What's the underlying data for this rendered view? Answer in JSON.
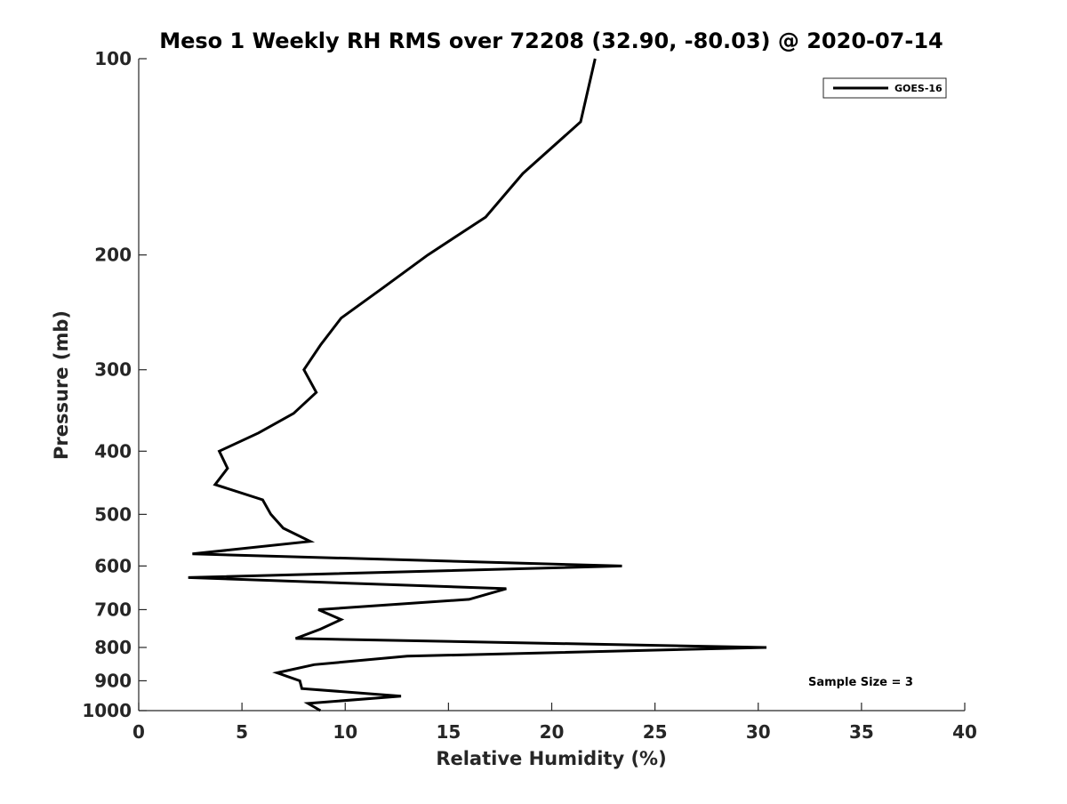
{
  "chart_data": {
    "type": "line",
    "title": "Meso 1 Weekly RH RMS over 72208 (32.90, -80.03) @ 2020-07-14",
    "xlabel": "Relative Humidity (%)",
    "ylabel": "Pressure (mb)",
    "xlim": [
      0,
      40
    ],
    "ylim": [
      1000,
      100
    ],
    "y_scale": "log",
    "y_reversed": true,
    "grid": false,
    "legend_position": "top-right",
    "x_ticks": [
      "0",
      "5",
      "10",
      "15",
      "20",
      "25",
      "30",
      "35",
      "40"
    ],
    "y_ticks": [
      "100",
      "200",
      "300",
      "400",
      "500",
      "600",
      "700",
      "800",
      "900",
      "1000"
    ],
    "annotation": "Sample Size = 3",
    "series": [
      {
        "name": "GOES-16",
        "color": "#000000",
        "points": [
          {
            "x": 22.1,
            "p": 100
          },
          {
            "x": 21.4,
            "p": 125
          },
          {
            "x": 18.6,
            "p": 150
          },
          {
            "x": 16.8,
            "p": 175
          },
          {
            "x": 14.0,
            "p": 200
          },
          {
            "x": 11.8,
            "p": 225
          },
          {
            "x": 9.8,
            "p": 250
          },
          {
            "x": 8.8,
            "p": 275
          },
          {
            "x": 8.0,
            "p": 300
          },
          {
            "x": 8.6,
            "p": 325
          },
          {
            "x": 7.5,
            "p": 350
          },
          {
            "x": 5.8,
            "p": 375
          },
          {
            "x": 3.9,
            "p": 400
          },
          {
            "x": 4.3,
            "p": 425
          },
          {
            "x": 3.7,
            "p": 450
          },
          {
            "x": 6.0,
            "p": 475
          },
          {
            "x": 6.4,
            "p": 500
          },
          {
            "x": 7.0,
            "p": 525
          },
          {
            "x": 8.3,
            "p": 550
          },
          {
            "x": 2.6,
            "p": 575
          },
          {
            "x": 23.4,
            "p": 600
          },
          {
            "x": 2.4,
            "p": 625
          },
          {
            "x": 17.8,
            "p": 650
          },
          {
            "x": 16.0,
            "p": 675
          },
          {
            "x": 8.7,
            "p": 700
          },
          {
            "x": 9.8,
            "p": 725
          },
          {
            "x": 8.8,
            "p": 750
          },
          {
            "x": 7.6,
            "p": 775
          },
          {
            "x": 30.4,
            "p": 800
          },
          {
            "x": 13.0,
            "p": 825
          },
          {
            "x": 8.5,
            "p": 850
          },
          {
            "x": 6.7,
            "p": 875
          },
          {
            "x": 7.8,
            "p": 900
          },
          {
            "x": 7.9,
            "p": 925
          },
          {
            "x": 12.7,
            "p": 950
          },
          {
            "x": 8.2,
            "p": 975
          },
          {
            "x": 8.8,
            "p": 1000
          }
        ]
      }
    ]
  }
}
